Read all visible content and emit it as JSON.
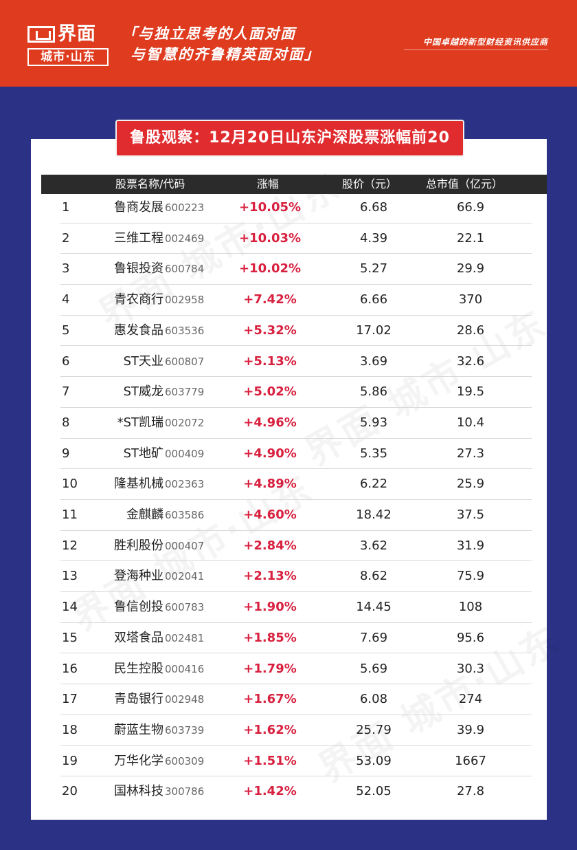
{
  "header": {
    "logo_main": "界面",
    "logo_sub": "城市·山东",
    "slogan_line1": "「与独立思考的人面对面",
    "slogan_line2": "与智慧的齐鲁精英面对面」",
    "tagline": "中国卓越的新型财经资讯供应商"
  },
  "title": "鲁股观察：12月20日山东沪深股票涨幅前20",
  "watermark": "界面 城市·山东",
  "table": {
    "columns": [
      "股票名称/代码",
      "涨幅",
      "股价（元）",
      "总市值（亿元）"
    ],
    "rows": [
      {
        "rank": "1",
        "name": "鲁商发展",
        "code": "600223",
        "change": "+10.05%",
        "price": "6.68",
        "cap": "66.9"
      },
      {
        "rank": "2",
        "name": "三维工程",
        "code": "002469",
        "change": "+10.03%",
        "price": "4.39",
        "cap": "22.1"
      },
      {
        "rank": "3",
        "name": "鲁银投资",
        "code": "600784",
        "change": "+10.02%",
        "price": "5.27",
        "cap": "29.9"
      },
      {
        "rank": "4",
        "name": "青农商行",
        "code": "002958",
        "change": "+7.42%",
        "price": "6.66",
        "cap": "370"
      },
      {
        "rank": "5",
        "name": "惠发食品",
        "code": "603536",
        "change": "+5.32%",
        "price": "17.02",
        "cap": "28.6"
      },
      {
        "rank": "6",
        "name": "ST天业",
        "code": "600807",
        "change": "+5.13%",
        "price": "3.69",
        "cap": "32.6"
      },
      {
        "rank": "7",
        "name": "ST威龙",
        "code": "603779",
        "change": "+5.02%",
        "price": "5.86",
        "cap": "19.5"
      },
      {
        "rank": "8",
        "name": "*ST凯瑞",
        "code": "002072",
        "change": "+4.96%",
        "price": "5.93",
        "cap": "10.4"
      },
      {
        "rank": "9",
        "name": "ST地矿",
        "code": "000409",
        "change": "+4.90%",
        "price": "5.35",
        "cap": "27.3"
      },
      {
        "rank": "10",
        "name": "隆基机械",
        "code": "002363",
        "change": "+4.89%",
        "price": "6.22",
        "cap": "25.9"
      },
      {
        "rank": "11",
        "name": "金麒麟",
        "code": "603586",
        "change": "+4.60%",
        "price": "18.42",
        "cap": "37.5"
      },
      {
        "rank": "12",
        "name": "胜利股份",
        "code": "000407",
        "change": "+2.84%",
        "price": "3.62",
        "cap": "31.9"
      },
      {
        "rank": "13",
        "name": "登海种业",
        "code": "002041",
        "change": "+2.13%",
        "price": "8.62",
        "cap": "75.9"
      },
      {
        "rank": "14",
        "name": "鲁信创投",
        "code": "600783",
        "change": "+1.90%",
        "price": "14.45",
        "cap": "108"
      },
      {
        "rank": "15",
        "name": "双塔食品",
        "code": "002481",
        "change": "+1.85%",
        "price": "7.69",
        "cap": "95.6"
      },
      {
        "rank": "16",
        "name": "民生控股",
        "code": "000416",
        "change": "+1.79%",
        "price": "5.69",
        "cap": "30.3"
      },
      {
        "rank": "17",
        "name": "青岛银行",
        "code": "002948",
        "change": "+1.67%",
        "price": "6.08",
        "cap": "274"
      },
      {
        "rank": "18",
        "name": "蔚蓝生物",
        "code": "603739",
        "change": "+1.62%",
        "price": "25.79",
        "cap": "39.9"
      },
      {
        "rank": "19",
        "name": "万华化学",
        "code": "600309",
        "change": "+1.51%",
        "price": "53.09",
        "cap": "1667"
      },
      {
        "rank": "20",
        "name": "国林科技",
        "code": "300786",
        "change": "+1.42%",
        "price": "52.05",
        "cap": "27.8"
      }
    ]
  },
  "colors": {
    "header_bg": "#df3b1f",
    "page_bg": "#2b3285",
    "title_bg": "#e02c2f",
    "change_text": "#d8203f",
    "table_header_bg": "#2b2b2b"
  }
}
